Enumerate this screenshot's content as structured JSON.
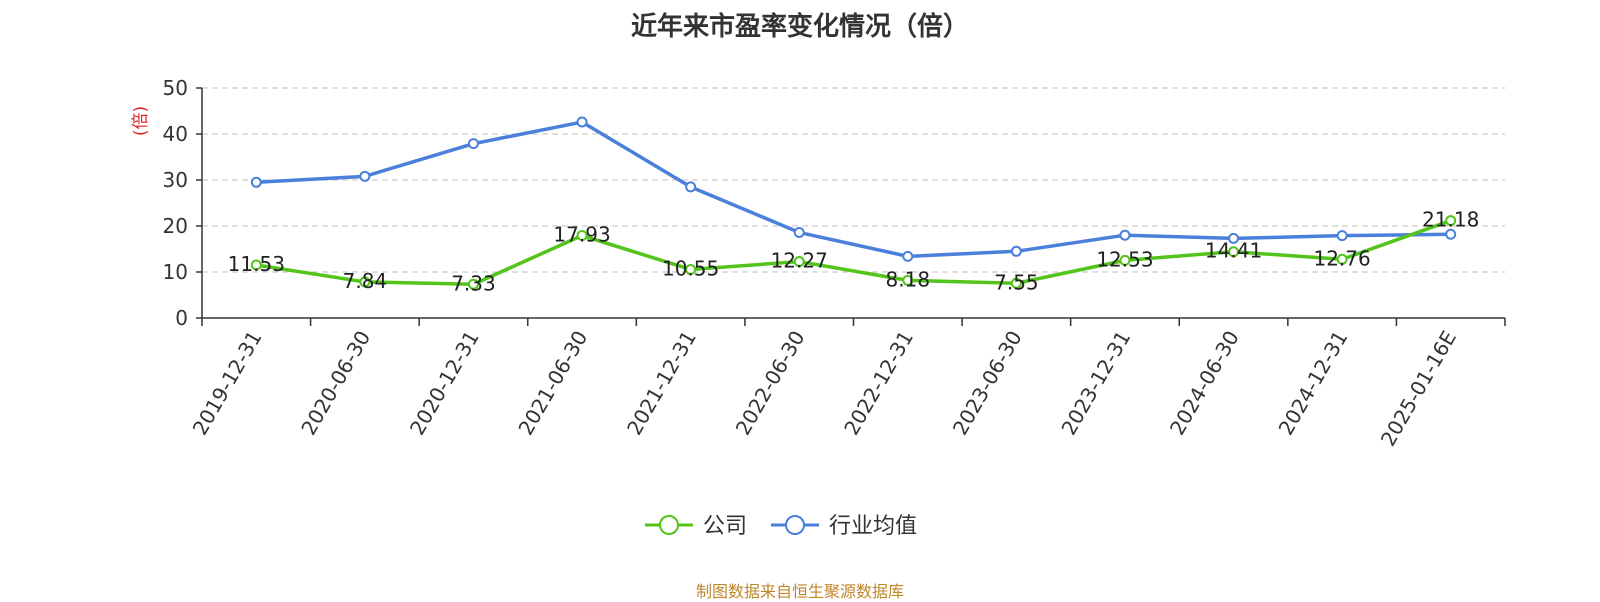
{
  "chart_data": {
    "type": "line",
    "title": "近年来市盈率变化情况（倍）",
    "ylabel": "(倍)",
    "xlabel": "",
    "ylim": [
      0,
      50
    ],
    "yticks": [
      0,
      10,
      20,
      30,
      40,
      50
    ],
    "grid": true,
    "legend_position": "bottom-center",
    "categories": [
      "2019-12-31",
      "2020-06-30",
      "2020-12-31",
      "2021-06-30",
      "2021-12-31",
      "2022-06-30",
      "2022-12-31",
      "2023-06-30",
      "2023-12-31",
      "2024-06-30",
      "2024-12-31",
      "2025-01-16E"
    ],
    "series": [
      {
        "name": "公司",
        "color": "#52c41a",
        "values": [
          11.53,
          7.84,
          7.33,
          17.93,
          10.55,
          12.27,
          8.18,
          7.55,
          12.53,
          14.41,
          12.76,
          21.18
        ],
        "labels": [
          "11.53",
          "7.84",
          "7.33",
          "17.93",
          "10.55",
          "12.27",
          "8.18",
          "7.55",
          "12.53",
          "14.41",
          "12.76",
          "21.18"
        ]
      },
      {
        "name": "行业均值",
        "color": "#4a7fdc",
        "values": [
          29.5,
          30.8,
          37.9,
          42.6,
          28.5,
          18.6,
          13.4,
          14.5,
          18.0,
          17.3,
          17.9,
          18.2
        ]
      }
    ]
  },
  "footer": "制图数据来自恒生聚源数据库"
}
